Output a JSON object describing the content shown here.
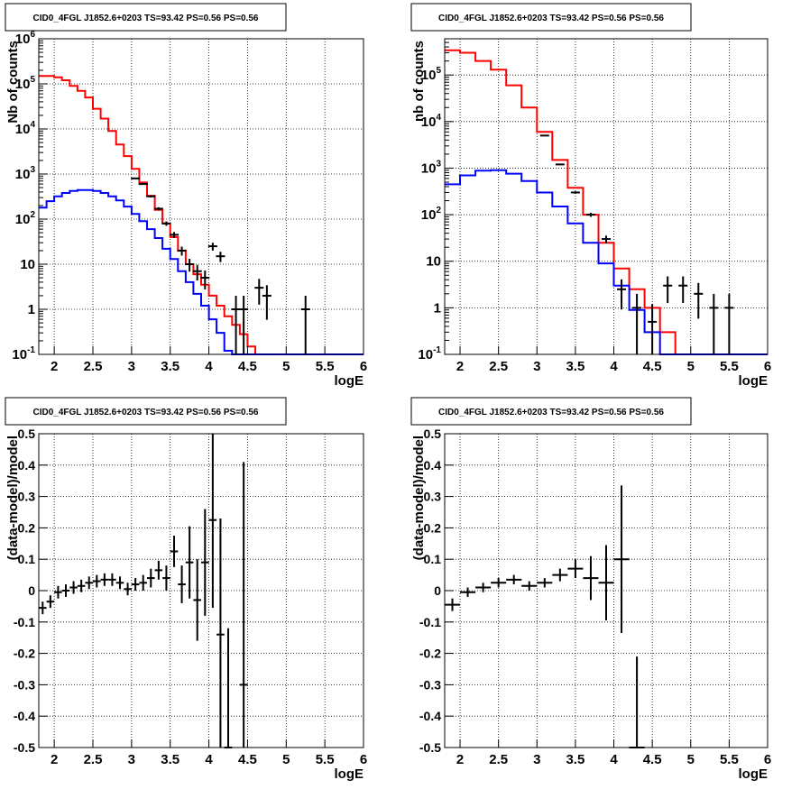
{
  "chart_data": [
    {
      "type": "histogram",
      "title": "CID0_4FGL J1852.6+0203 TS=93.42 PS=0.56 PS=0.56",
      "xlabel": "logE",
      "ylabel": "Nb of counts",
      "xlim": [
        1.8,
        6
      ],
      "ylim": [
        0.1,
        1000000
      ],
      "yscale": "log",
      "grid": true,
      "x_ticks": [
        "2",
        "2.5",
        "3",
        "3.5",
        "4",
        "4.5",
        "5",
        "5.5",
        "6"
      ],
      "y_ticks": [
        "10^-1",
        "1",
        "10",
        "10^2",
        "10^3",
        "10^4",
        "10^5",
        "10^6"
      ],
      "bin_width": 0.1,
      "series": [
        {
          "color": "#ff0000",
          "style": "step",
          "x": [
            1.8,
            1.9,
            2.0,
            2.1,
            2.2,
            2.3,
            2.4,
            2.5,
            2.6,
            2.7,
            2.8,
            2.9,
            3.0,
            3.1,
            3.2,
            3.3,
            3.4,
            3.5,
            3.6,
            3.7,
            3.8,
            3.9,
            4.0,
            4.1,
            4.2,
            4.3,
            4.4,
            4.5,
            4.6,
            4.7,
            4.8,
            4.9,
            5.0,
            5.1,
            5.2,
            5.3,
            5.4,
            5.5,
            5.6,
            5.7,
            5.8,
            5.9
          ],
          "values": [
            150000,
            150000,
            140000,
            120000,
            90000,
            70000,
            50000,
            28000,
            17000,
            9000,
            4500,
            2500,
            1300,
            650,
            330,
            160,
            80,
            40,
            20,
            10,
            6,
            3.5,
            2,
            1.2,
            0.7,
            0.45,
            0.28,
            0.15,
            0.1,
            0.1,
            0.1,
            0.1,
            0.1,
            0.1,
            0.1,
            0.1,
            0.1,
            0.1,
            0.1,
            0.1,
            0.1,
            0.1
          ]
        },
        {
          "color": "#0000ff",
          "style": "step",
          "x": [
            1.8,
            1.9,
            2.0,
            2.1,
            2.2,
            2.3,
            2.4,
            2.5,
            2.6,
            2.7,
            2.8,
            2.9,
            3.0,
            3.1,
            3.2,
            3.3,
            3.4,
            3.5,
            3.6,
            3.7,
            3.8,
            3.9,
            4.0,
            4.1,
            4.2,
            4.3,
            4.4,
            4.5,
            4.6,
            4.7,
            4.8,
            4.9,
            5.0,
            5.1,
            5.2,
            5.3,
            5.4,
            5.5,
            5.6,
            5.7,
            5.8,
            5.9
          ],
          "values": [
            180,
            250,
            320,
            380,
            420,
            440,
            440,
            420,
            380,
            320,
            260,
            190,
            130,
            90,
            60,
            38,
            22,
            13,
            7,
            4,
            2.2,
            1.2,
            0.6,
            0.3,
            0.12,
            0.1,
            0.1,
            0.1,
            0.1,
            0.1,
            0.1,
            0.1,
            0.1,
            0.1,
            0.1,
            0.1,
            0.1,
            0.1,
            0.1,
            0.1,
            0.1,
            0.1
          ]
        },
        {
          "color": "#000000",
          "style": "points",
          "x": [
            3.0,
            3.1,
            3.2,
            3.3,
            3.4,
            3.5,
            3.6,
            3.7,
            3.8,
            3.9,
            4.0,
            4.1,
            4.3,
            4.4,
            4.6,
            4.7,
            5.2
          ],
          "values": [
            800,
            600,
            320,
            170,
            80,
            45,
            20,
            10,
            7,
            5,
            25,
            15,
            1,
            1,
            3,
            2,
            1
          ]
        }
      ]
    },
    {
      "type": "histogram",
      "title": "CID0_4FGL J1852.6+0203 TS=93.42 PS=0.56 PS=0.56",
      "xlabel": "logE",
      "ylabel": "nb of counts",
      "xlim": [
        1.8,
        6
      ],
      "ylim": [
        0.1,
        600000
      ],
      "yscale": "log",
      "grid": true,
      "x_ticks": [
        "2",
        "2.5",
        "3",
        "3.5",
        "4",
        "4.5",
        "5",
        "5.5",
        "6"
      ],
      "y_ticks": [
        "10^-1",
        "1",
        "10",
        "10^2",
        "10^3",
        "10^4",
        "10^5"
      ],
      "bin_width": 0.2,
      "series": [
        {
          "color": "#ff0000",
          "style": "step",
          "x": [
            1.8,
            2.0,
            2.2,
            2.4,
            2.6,
            2.8,
            3.0,
            3.2,
            3.4,
            3.6,
            3.8,
            4.0,
            4.2,
            4.4,
            4.6,
            4.8,
            5.0,
            5.2,
            5.4,
            5.6,
            5.8
          ],
          "values": [
            340000,
            300000,
            200000,
            130000,
            60000,
            20000,
            6000,
            1500,
            380,
            100,
            25,
            7,
            2.5,
            1,
            0.3,
            0.1,
            0.1,
            0.1,
            0.1,
            0.1,
            0.1
          ]
        },
        {
          "color": "#0000ff",
          "style": "step",
          "x": [
            1.8,
            2.0,
            2.2,
            2.4,
            2.6,
            2.8,
            3.0,
            3.2,
            3.4,
            3.6,
            3.8,
            4.0,
            4.2,
            4.4,
            4.6,
            4.8,
            5.0,
            5.2,
            5.4,
            5.6,
            5.8
          ],
          "values": [
            450,
            700,
            880,
            900,
            760,
            530,
            300,
            150,
            65,
            25,
            9,
            3,
            0.9,
            0.3,
            0.1,
            0.1,
            0.1,
            0.1,
            0.1,
            0.1,
            0.1
          ]
        },
        {
          "color": "#000000",
          "style": "points",
          "x": [
            3.0,
            3.2,
            3.4,
            3.6,
            3.8,
            4.0,
            4.2,
            4.4,
            4.6,
            4.8,
            5.0,
            5.2,
            5.4
          ],
          "values": [
            5000,
            1200,
            300,
            100,
            30,
            2.5,
            1,
            0.5,
            3,
            3,
            2,
            1,
            1
          ]
        }
      ]
    },
    {
      "type": "errorbar",
      "title": "CID0_4FGL J1852.6+0203 TS=93.42 PS=0.56 PS=0.56",
      "xlabel": "logE",
      "ylabel": "(data-model)/model",
      "xlim": [
        1.8,
        6
      ],
      "ylim": [
        -0.5,
        0.5
      ],
      "grid": true,
      "x_ticks": [
        "2",
        "2.5",
        "3",
        "3.5",
        "4",
        "4.5",
        "5",
        "5.5",
        "6"
      ],
      "y_ticks": [
        "-0.5",
        "-0.4",
        "-0.3",
        "-0.2",
        "-0.1",
        "0",
        "0.1",
        "0.2",
        "0.3",
        "0.4",
        "0.5"
      ],
      "bin_width": 0.1,
      "points": [
        {
          "x": 1.85,
          "y": -0.055,
          "err": 0.02
        },
        {
          "x": 1.95,
          "y": -0.035,
          "err": 0.02
        },
        {
          "x": 2.05,
          "y": -0.005,
          "err": 0.02
        },
        {
          "x": 2.15,
          "y": 0.0,
          "err": 0.02
        },
        {
          "x": 2.25,
          "y": 0.01,
          "err": 0.02
        },
        {
          "x": 2.35,
          "y": 0.015,
          "err": 0.02
        },
        {
          "x": 2.45,
          "y": 0.025,
          "err": 0.02
        },
        {
          "x": 2.55,
          "y": 0.03,
          "err": 0.02
        },
        {
          "x": 2.65,
          "y": 0.035,
          "err": 0.02
        },
        {
          "x": 2.75,
          "y": 0.035,
          "err": 0.02
        },
        {
          "x": 2.85,
          "y": 0.025,
          "err": 0.02
        },
        {
          "x": 2.95,
          "y": 0.005,
          "err": 0.02
        },
        {
          "x": 3.05,
          "y": 0.02,
          "err": 0.02
        },
        {
          "x": 3.15,
          "y": 0.025,
          "err": 0.025
        },
        {
          "x": 3.25,
          "y": 0.04,
          "err": 0.03
        },
        {
          "x": 3.35,
          "y": 0.065,
          "err": 0.03
        },
        {
          "x": 3.45,
          "y": 0.04,
          "err": 0.04
        },
        {
          "x": 3.55,
          "y": 0.125,
          "err": 0.05
        },
        {
          "x": 3.65,
          "y": 0.02,
          "err": 0.06
        },
        {
          "x": 3.75,
          "y": 0.09,
          "err": 0.115
        },
        {
          "x": 3.85,
          "y": -0.03,
          "err": 0.13
        },
        {
          "x": 3.95,
          "y": 0.09,
          "err": 0.17
        },
        {
          "x": 4.05,
          "y": 0.225,
          "err": 0.28
        },
        {
          "x": 4.15,
          "y": -0.14,
          "err": 0.37
        },
        {
          "x": 4.25,
          "y": -0.5,
          "err": 0.38
        },
        {
          "x": 4.45,
          "y": -0.3,
          "err": 0.71
        }
      ]
    },
    {
      "type": "errorbar",
      "title": "CID0_4FGL J1852.6+0203 TS=93.42 PS=0.56 PS=0.56",
      "xlabel": "logE",
      "ylabel": "(data-model)/model",
      "xlim": [
        1.8,
        6
      ],
      "ylim": [
        -0.5,
        0.5
      ],
      "grid": true,
      "x_ticks": [
        "2",
        "2.5",
        "3",
        "3.5",
        "4",
        "4.5",
        "5",
        "5.5",
        "6"
      ],
      "y_ticks": [
        "-0.5",
        "-0.4",
        "-0.3",
        "-0.2",
        "-0.1",
        "0",
        "0.1",
        "0.2",
        "0.3",
        "0.4",
        "0.5"
      ],
      "bin_width": 0.2,
      "points": [
        {
          "x": 1.9,
          "y": -0.045,
          "err": 0.02
        },
        {
          "x": 2.1,
          "y": -0.005,
          "err": 0.015
        },
        {
          "x": 2.3,
          "y": 0.01,
          "err": 0.015
        },
        {
          "x": 2.5,
          "y": 0.025,
          "err": 0.015
        },
        {
          "x": 2.7,
          "y": 0.035,
          "err": 0.015
        },
        {
          "x": 2.9,
          "y": 0.015,
          "err": 0.015
        },
        {
          "x": 3.1,
          "y": 0.025,
          "err": 0.015
        },
        {
          "x": 3.3,
          "y": 0.05,
          "err": 0.02
        },
        {
          "x": 3.5,
          "y": 0.07,
          "err": 0.03
        },
        {
          "x": 3.7,
          "y": 0.04,
          "err": 0.07
        },
        {
          "x": 3.9,
          "y": 0.025,
          "err": 0.12
        },
        {
          "x": 4.1,
          "y": 0.1,
          "err": 0.235
        },
        {
          "x": 4.3,
          "y": -0.5,
          "err": 0.29
        }
      ]
    }
  ]
}
